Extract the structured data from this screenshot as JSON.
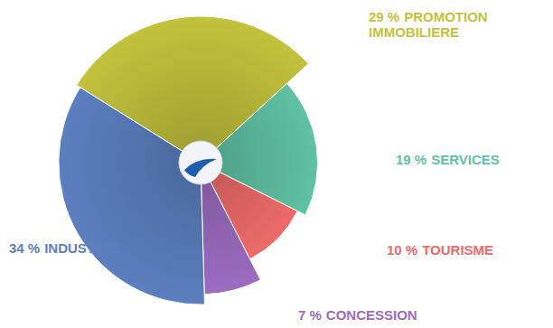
{
  "chart_data": {
    "type": "pie",
    "categories": [
      "PROMOTION IMMOBILIERE",
      "SERVICES",
      "TOURISME",
      "CONCESSION",
      "INDUSTRIE"
    ],
    "values": [
      29,
      19,
      10,
      7,
      34
    ],
    "value_labels": [
      "29 %",
      "19 %",
      "10 %",
      "7 %",
      "34 %"
    ],
    "colors": [
      "#c2c23c",
      "#5fc2a3",
      "#ee6a6a",
      "#9c6cc0",
      "#5b7fbf"
    ],
    "data_labels": true
  }
}
